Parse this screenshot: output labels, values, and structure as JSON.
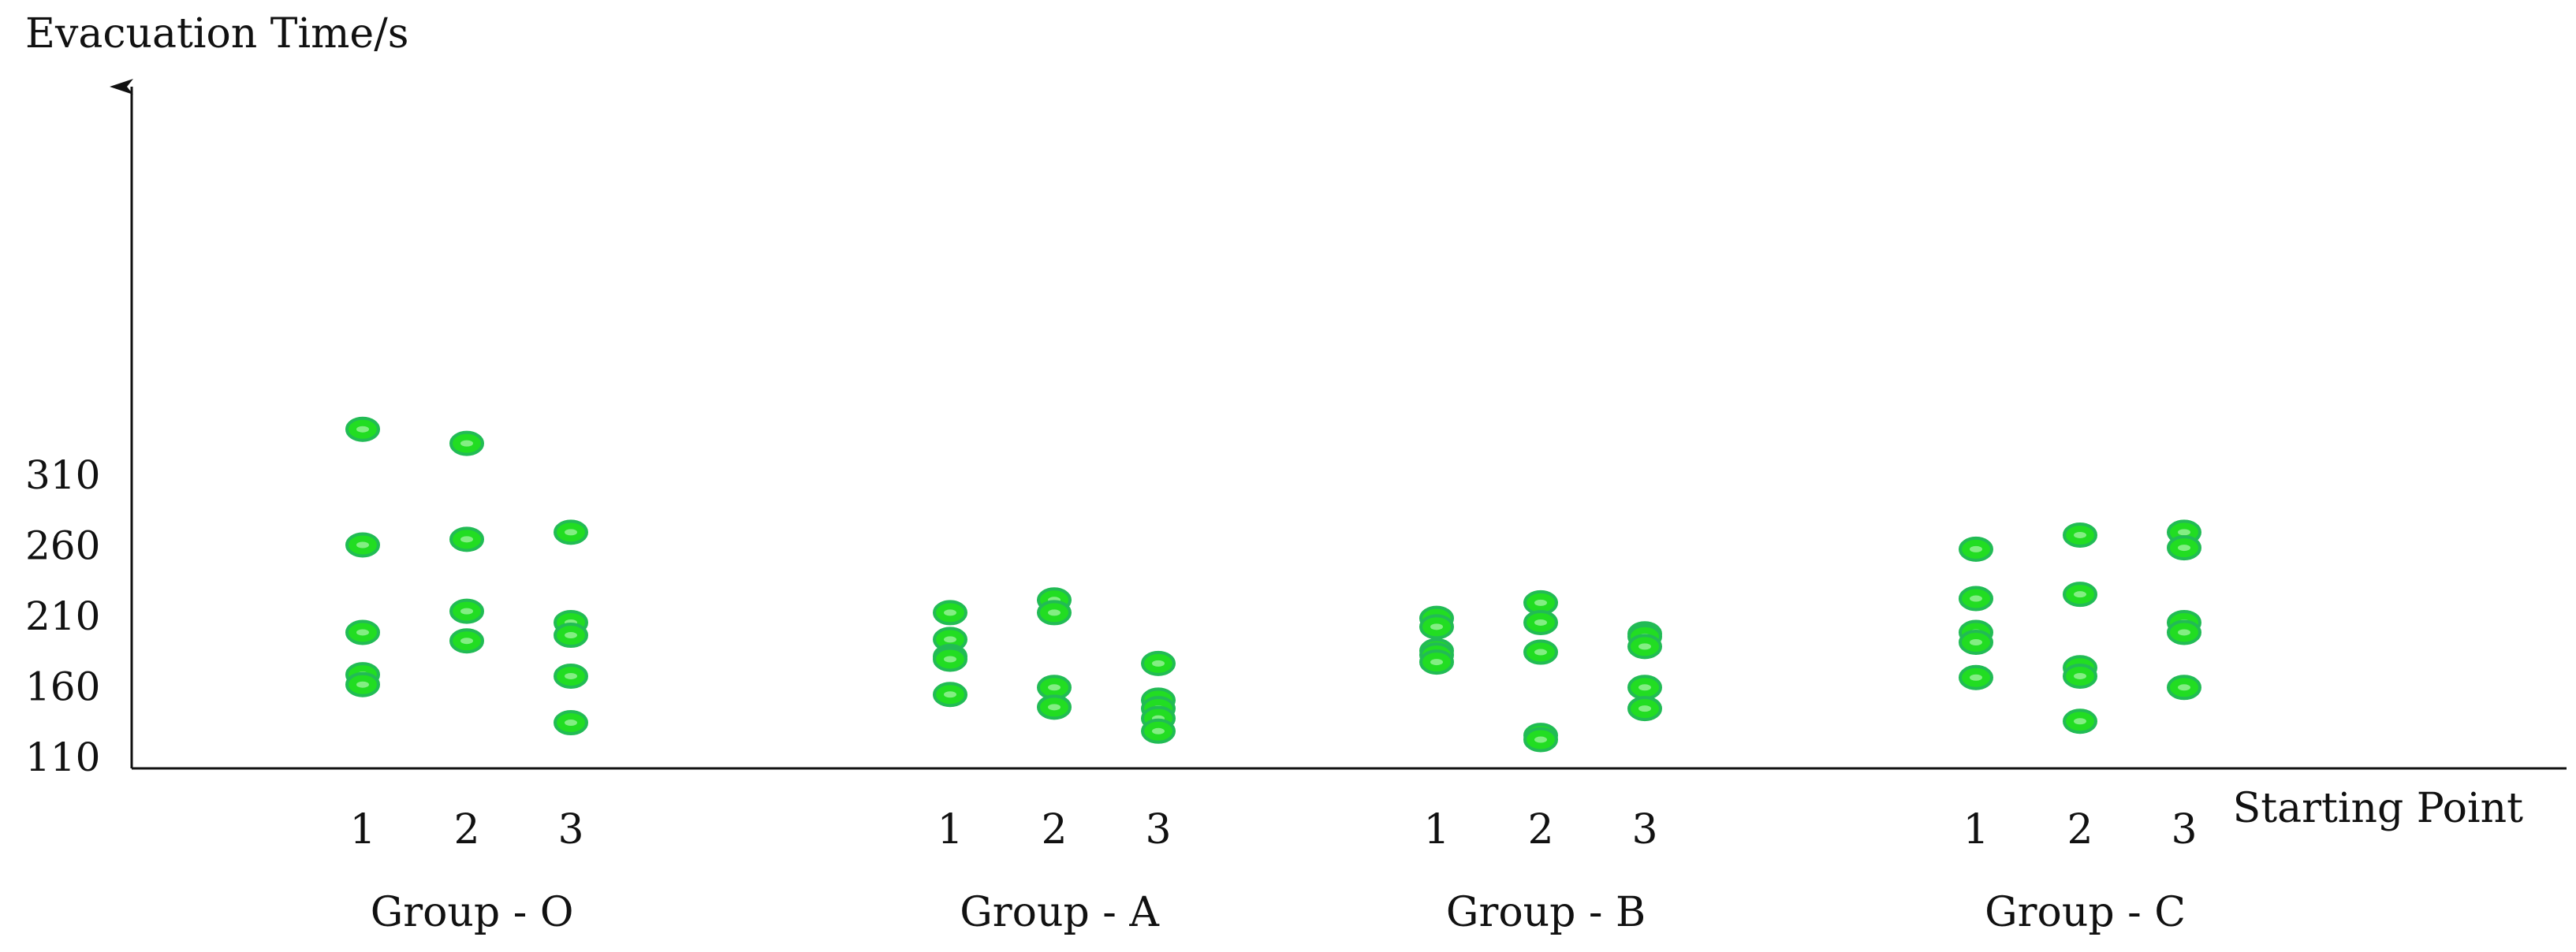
{
  "chart_data": {
    "type": "scatter",
    "title": "",
    "ylabel": "Evacuation Time/s",
    "xlabel": "Starting Point",
    "ylim": [
      110,
      345
    ],
    "y_ticks": [
      110,
      160,
      210,
      260,
      310
    ],
    "grid": false,
    "legend": "none",
    "marker_color": "#22dd22",
    "marker_edge_color": "#22bb55",
    "groups": [
      {
        "name": "Group - O",
        "points": [
          {
            "label": "1",
            "values": [
              342,
              260,
              198,
              168,
              161
            ]
          },
          {
            "label": "2",
            "values": [
              332,
              264,
              213,
              192
            ]
          },
          {
            "label": "3",
            "values": [
              269,
              205,
              196,
              167,
              134
            ]
          }
        ]
      },
      {
        "name": "Group - A",
        "points": [
          {
            "label": "1",
            "values": [
              212,
              193,
              181,
              179,
              154
            ]
          },
          {
            "label": "2",
            "values": [
              221,
              212,
              159,
              145
            ]
          },
          {
            "label": "3",
            "values": [
              176,
              150,
              144,
              137,
              128
            ]
          }
        ]
      },
      {
        "name": "Group - B",
        "points": [
          {
            "label": "1",
            "values": [
              208,
              202,
              185,
              182,
              177
            ]
          },
          {
            "label": "2",
            "values": [
              219,
              205,
              184,
              125,
              122
            ]
          },
          {
            "label": "3",
            "values": [
              197,
              195,
              188,
              159,
              144
            ]
          }
        ]
      },
      {
        "name": "Group - C",
        "points": [
          {
            "label": "1",
            "values": [
              257,
              222,
              198,
              191,
              166
            ]
          },
          {
            "label": "2",
            "values": [
              267,
              225,
              173,
              167,
              135
            ]
          },
          {
            "label": "3",
            "values": [
              269,
              258,
              205,
              198,
              159
            ]
          }
        ]
      }
    ]
  }
}
